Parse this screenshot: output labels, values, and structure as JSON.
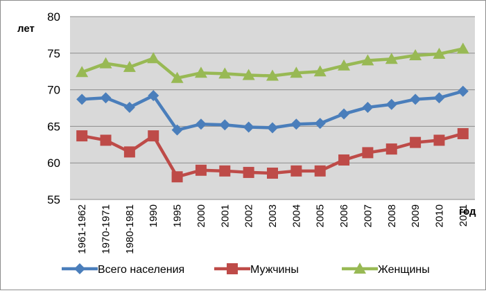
{
  "chart_data": {
    "type": "line",
    "title": "",
    "ylabel": "лет",
    "xlabel": "год",
    "ylim": [
      55,
      80
    ],
    "yticks": [
      55,
      60,
      65,
      70,
      75,
      80
    ],
    "grid": "horizontal",
    "legend_position": "bottom",
    "categories": [
      "1961-1962",
      "1970-1971",
      "1980-1981",
      "1990",
      "1995",
      "2000",
      "2001",
      "2002",
      "2003",
      "2004",
      "2005",
      "2006",
      "2007",
      "2008",
      "2009",
      "2010",
      "2011"
    ],
    "series": [
      {
        "name": "Всего населения",
        "color": "#4a7ebb",
        "marker": "diamond",
        "values": [
          68.7,
          68.9,
          67.6,
          69.2,
          64.5,
          65.3,
          65.2,
          64.9,
          64.8,
          65.3,
          65.4,
          66.7,
          67.6,
          68.0,
          68.7,
          68.9,
          69.8
        ]
      },
      {
        "name": "Мужчины",
        "color": "#be4b48",
        "marker": "square",
        "values": [
          63.7,
          63.1,
          61.5,
          63.7,
          58.1,
          59.0,
          58.9,
          58.7,
          58.6,
          58.9,
          58.9,
          60.4,
          61.4,
          61.9,
          62.8,
          63.1,
          64.0
        ]
      },
      {
        "name": "Женщины",
        "color": "#98b954",
        "marker": "triangle",
        "values": [
          72.4,
          73.6,
          73.1,
          74.3,
          71.6,
          72.3,
          72.2,
          72.0,
          71.9,
          72.3,
          72.5,
          73.3,
          74.0,
          74.2,
          74.7,
          74.9,
          75.6
        ]
      }
    ]
  }
}
